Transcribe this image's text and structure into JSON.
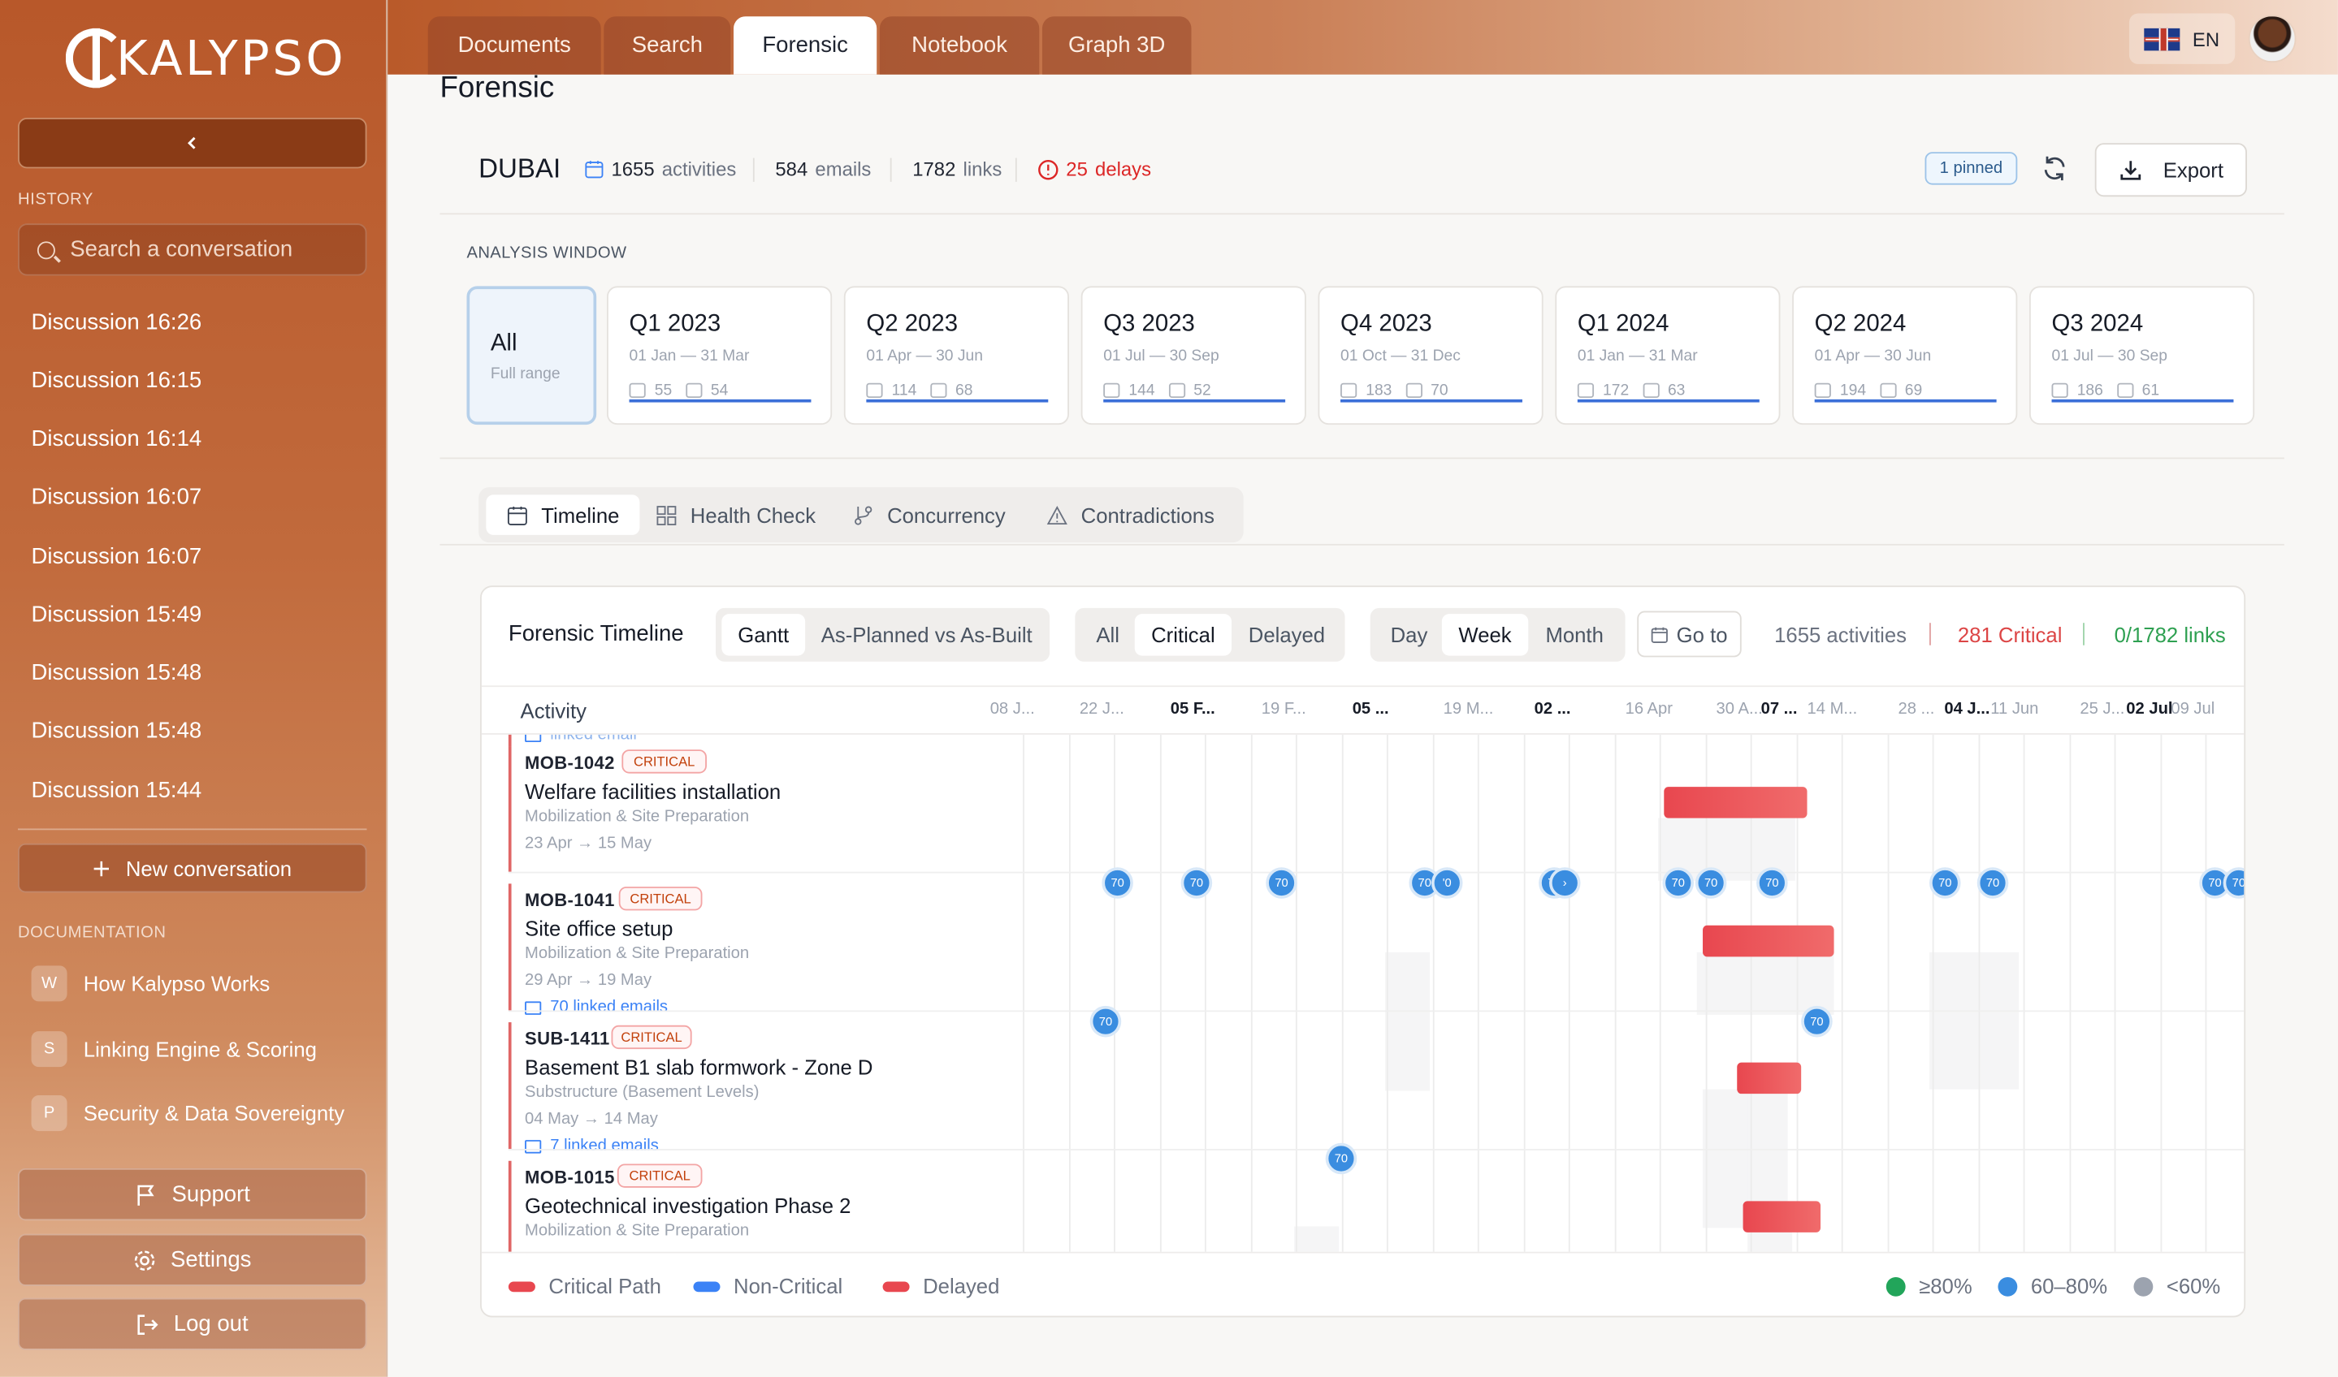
{
  "app": {
    "brand": "KALYPSO"
  },
  "sidebar": {
    "history_label": "HISTORY",
    "search_placeholder": "Search a conversation",
    "discussions": [
      "Discussion 16:26",
      "Discussion 16:15",
      "Discussion 16:14",
      "Discussion 16:07",
      "Discussion 16:07",
      "Discussion 15:49",
      "Discussion 15:48",
      "Discussion 15:48",
      "Discussion 15:44"
    ],
    "new_conversation": "New conversation",
    "documentation_label": "DOCUMENTATION",
    "docs": [
      {
        "badge": "W",
        "label": "How Kalypso Works"
      },
      {
        "badge": "S",
        "label": "Linking Engine & Scoring"
      },
      {
        "badge": "P",
        "label": "Security & Data Sovereignty"
      }
    ],
    "support": "Support",
    "settings": "Settings",
    "logout": "Log out"
  },
  "topbar": {
    "tabs": [
      "Documents",
      "Search",
      "Forensic",
      "Notebook",
      "Graph 3D"
    ],
    "active_tab": "Forensic",
    "language": "EN"
  },
  "page": {
    "title": "Forensic",
    "project": "DUBAI",
    "activities_count": "1655",
    "activities_label": "activities",
    "emails_count": "584",
    "emails_label": "emails",
    "links_count": "1782",
    "links_label": "links",
    "delays_count": "25",
    "delays_label": "delays",
    "pinned": "1 pinned",
    "export": "Export"
  },
  "analysis_window": {
    "label": "ANALYSIS WINDOW",
    "all": {
      "title": "All",
      "sub": "Full range"
    },
    "quarters": [
      {
        "title": "Q1 2023",
        "range": "01 Jan — 31 Mar",
        "acts": "55",
        "mails": "54"
      },
      {
        "title": "Q2 2023",
        "range": "01 Apr — 30 Jun",
        "acts": "114",
        "mails": "68"
      },
      {
        "title": "Q3 2023",
        "range": "01 Jul — 30 Sep",
        "acts": "144",
        "mails": "52"
      },
      {
        "title": "Q4 2023",
        "range": "01 Oct — 31 Dec",
        "acts": "183",
        "mails": "70"
      },
      {
        "title": "Q1 2024",
        "range": "01 Jan — 31 Mar",
        "acts": "172",
        "mails": "63"
      },
      {
        "title": "Q2 2024",
        "range": "01 Apr — 30 Jun",
        "acts": "194",
        "mails": "69"
      },
      {
        "title": "Q3 2024",
        "range": "01 Jul — 30 Sep",
        "acts": "186",
        "mails": "61"
      }
    ]
  },
  "subtabs": [
    "Timeline",
    "Health Check",
    "Concurrency",
    "Contradictions"
  ],
  "timeline": {
    "title": "Forensic Timeline",
    "view_modes": [
      "Gantt",
      "As-Planned vs As-Built"
    ],
    "filters": [
      "All",
      "Critical",
      "Delayed"
    ],
    "scales": [
      "Day",
      "Week",
      "Month"
    ],
    "goto": "Go to",
    "activities": "1655 activities",
    "critical": "281 Critical",
    "links": "0/1782 links",
    "activity_col": "Activity",
    "date_labels": [
      {
        "t": "08 J...",
        "bold": false
      },
      {
        "t": "22 J...",
        "bold": false
      },
      {
        "t": "05 F...",
        "bold": true
      },
      {
        "t": "19 F...",
        "bold": false
      },
      {
        "t": "05 ...",
        "bold": true
      },
      {
        "t": "19 M...",
        "bold": false
      },
      {
        "t": "02 ...",
        "bold": true
      },
      {
        "t": "16 Apr",
        "bold": false
      },
      {
        "t": "30 A...",
        "bold": false
      },
      {
        "t": "07 ...",
        "bold": true
      },
      {
        "t": "14 M...",
        "bold": false
      },
      {
        "t": "28 ...",
        "bold": false
      },
      {
        "t": "04 J...",
        "bold": true
      },
      {
        "t": "11 Jun",
        "bold": false
      },
      {
        "t": "25 J...",
        "bold": false
      },
      {
        "t": "02 Jul",
        "bold": true
      },
      {
        "t": "09 Jul",
        "bold": false
      }
    ],
    "top_link_cut": "linked email",
    "rows": [
      {
        "code": "MOB-1042",
        "badge": "CRITICAL",
        "name": "Welfare facilities installation",
        "cat": "Mobilization & Site Preparation",
        "dates": "23 Apr → 15 May",
        "links": ""
      },
      {
        "code": "MOB-1041",
        "badge": "CRITICAL",
        "name": "Site office setup",
        "cat": "Mobilization & Site Preparation",
        "dates": "29 Apr → 19 May",
        "links": "70 linked emails"
      },
      {
        "code": "SUB-1411",
        "badge": "CRITICAL",
        "name": "Basement B1 slab formwork - Zone D",
        "cat": "Substructure (Basement Levels)",
        "dates": "04 May → 14 May",
        "links": "7 linked emails"
      },
      {
        "code": "MOB-1015",
        "badge": "CRITICAL",
        "name": "Geotechnical investigation Phase 2",
        "cat": "Mobilization & Site Preparation",
        "dates": "",
        "links": ""
      }
    ],
    "dot_label": "70",
    "dot_label_cut": "'0",
    "dot_label_cut2": "›",
    "legend": {
      "critical": "Critical Path",
      "noncritical": "Non-Critical",
      "delayed": "Delayed",
      "hi": "≥80%",
      "mid": "60–80%",
      "lo": "<60%"
    }
  },
  "colors": {
    "critical": "#e8474f",
    "noncritical": "#3b82f6",
    "accent": "#b8582a",
    "hi": "#22a55a",
    "mid": "#3a8de0",
    "lo": "#9ca3af"
  }
}
